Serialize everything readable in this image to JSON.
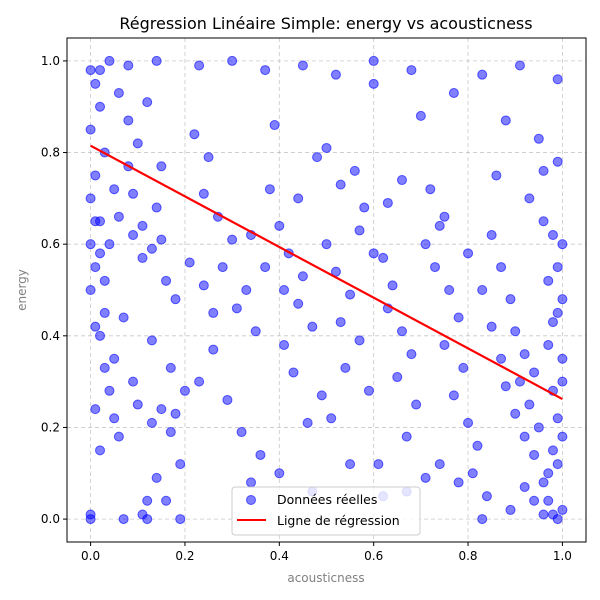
{
  "chart_data": {
    "type": "scatter",
    "title": "Régression Linéaire Simple: energy vs acousticness",
    "xlabel": "acousticness",
    "ylabel": "energy",
    "xlim": [
      -0.05,
      1.05
    ],
    "ylim": [
      -0.05,
      1.05
    ],
    "xticks": [
      "0.0",
      "0.2",
      "0.4",
      "0.6",
      "0.8",
      "1.0"
    ],
    "yticks": [
      "0.0",
      "0.2",
      "0.4",
      "0.6",
      "0.8",
      "1.0"
    ],
    "grid": true,
    "legend_position": "bottom-center",
    "series": [
      {
        "name": "Données réelles",
        "kind": "scatter",
        "color": "#0000ff",
        "points": [
          [
            0.0,
            0.98
          ],
          [
            0.01,
            0.95
          ],
          [
            0.02,
            0.9
          ],
          [
            0.0,
            0.85
          ],
          [
            0.03,
            0.8
          ],
          [
            0.01,
            0.75
          ],
          [
            0.0,
            0.7
          ],
          [
            0.02,
            0.65
          ],
          [
            0.04,
            0.6
          ],
          [
            0.01,
            0.55
          ],
          [
            0.0,
            0.5
          ],
          [
            0.03,
            0.45
          ],
          [
            0.02,
            0.4
          ],
          [
            0.05,
            0.35
          ],
          [
            0.0,
            0.01
          ],
          [
            0.0,
            0.0
          ],
          [
            0.01,
            0.24
          ],
          [
            0.02,
            0.15
          ],
          [
            0.07,
            0.0
          ],
          [
            0.11,
            0.01
          ],
          [
            0.12,
            0.0
          ],
          [
            0.19,
            0.0
          ],
          [
            0.06,
            0.93
          ],
          [
            0.08,
            0.87
          ],
          [
            0.1,
            0.82
          ],
          [
            0.12,
            0.91
          ],
          [
            0.15,
            0.77
          ],
          [
            0.14,
            0.68
          ],
          [
            0.09,
            0.62
          ],
          [
            0.11,
            0.57
          ],
          [
            0.16,
            0.52
          ],
          [
            0.18,
            0.48
          ],
          [
            0.07,
            0.44
          ],
          [
            0.13,
            0.39
          ],
          [
            0.17,
            0.33
          ],
          [
            0.2,
            0.28
          ],
          [
            0.22,
            0.84
          ],
          [
            0.25,
            0.79
          ],
          [
            0.24,
            0.71
          ],
          [
            0.27,
            0.66
          ],
          [
            0.3,
            0.61
          ],
          [
            0.28,
            0.55
          ],
          [
            0.33,
            0.5
          ],
          [
            0.31,
            0.46
          ],
          [
            0.35,
            0.41
          ],
          [
            0.26,
            0.37
          ],
          [
            0.23,
            0.3
          ],
          [
            0.29,
            0.26
          ],
          [
            0.32,
            0.19
          ],
          [
            0.36,
            0.14
          ],
          [
            0.38,
            0.72
          ],
          [
            0.4,
            0.64
          ],
          [
            0.42,
            0.58
          ],
          [
            0.45,
            0.53
          ],
          [
            0.44,
            0.47
          ],
          [
            0.47,
            0.42
          ],
          [
            0.41,
            0.38
          ],
          [
            0.43,
            0.32
          ],
          [
            0.49,
            0.27
          ],
          [
            0.46,
            0.21
          ],
          [
            0.39,
            0.86
          ],
          [
            0.48,
            0.79
          ],
          [
            0.5,
            0.6
          ],
          [
            0.52,
            0.54
          ],
          [
            0.55,
            0.49
          ],
          [
            0.53,
            0.43
          ],
          [
            0.57,
            0.39
          ],
          [
            0.54,
            0.33
          ],
          [
            0.59,
            0.28
          ],
          [
            0.51,
            0.22
          ],
          [
            0.56,
            0.76
          ],
          [
            0.58,
            0.68
          ],
          [
            0.6,
            0.95
          ],
          [
            0.62,
            0.57
          ],
          [
            0.64,
            0.51
          ],
          [
            0.63,
            0.46
          ],
          [
            0.66,
            0.41
          ],
          [
            0.68,
            0.36
          ],
          [
            0.65,
            0.31
          ],
          [
            0.69,
            0.25
          ],
          [
            0.67,
            0.18
          ],
          [
            0.61,
            0.12
          ],
          [
            0.7,
            0.88
          ],
          [
            0.72,
            0.72
          ],
          [
            0.74,
            0.64
          ],
          [
            0.73,
            0.55
          ],
          [
            0.76,
            0.5
          ],
          [
            0.78,
            0.44
          ],
          [
            0.75,
            0.38
          ],
          [
            0.79,
            0.33
          ],
          [
            0.77,
            0.27
          ],
          [
            0.8,
            0.21
          ],
          [
            0.82,
            0.16
          ],
          [
            0.81,
            0.1
          ],
          [
            0.84,
            0.05
          ],
          [
            0.86,
            0.75
          ],
          [
            0.88,
            0.87
          ],
          [
            0.85,
            0.62
          ],
          [
            0.87,
            0.55
          ],
          [
            0.89,
            0.48
          ],
          [
            0.9,
            0.41
          ],
          [
            0.92,
            0.36
          ],
          [
            0.91,
            0.3
          ],
          [
            0.93,
            0.25
          ],
          [
            0.95,
            0.2
          ],
          [
            0.94,
            0.14
          ],
          [
            0.96,
            0.08
          ],
          [
            0.97,
            0.04
          ],
          [
            0.98,
            0.01
          ],
          [
            0.99,
            0.0
          ],
          [
            1.0,
            0.02
          ],
          [
            0.99,
            0.12
          ],
          [
            1.0,
            0.18
          ],
          [
            0.98,
            0.28
          ],
          [
            1.0,
            0.35
          ],
          [
            0.99,
            0.45
          ],
          [
            0.97,
            0.52
          ],
          [
            1.0,
            0.6
          ],
          [
            0.96,
            0.65
          ],
          [
            0.95,
            0.83
          ],
          [
            0.99,
            0.96
          ],
          [
            0.91,
            0.99
          ],
          [
            0.83,
            0.97
          ],
          [
            0.77,
            0.93
          ],
          [
            0.68,
            0.98
          ],
          [
            0.6,
            1.0
          ],
          [
            0.52,
            0.97
          ],
          [
            0.45,
            0.99
          ],
          [
            0.37,
            0.98
          ],
          [
            0.3,
            1.0
          ],
          [
            0.23,
            0.99
          ],
          [
            0.14,
            1.0
          ],
          [
            0.08,
            0.99
          ],
          [
            0.04,
            1.0
          ],
          [
            0.02,
            0.98
          ],
          [
            0.03,
            0.33
          ],
          [
            0.04,
            0.28
          ],
          [
            0.05,
            0.22
          ],
          [
            0.06,
            0.18
          ],
          [
            0.09,
            0.3
          ],
          [
            0.1,
            0.25
          ],
          [
            0.13,
            0.21
          ],
          [
            0.15,
            0.24
          ],
          [
            0.17,
            0.19
          ],
          [
            0.18,
            0.23
          ],
          [
            0.19,
            0.12
          ],
          [
            0.14,
            0.09
          ],
          [
            0.12,
            0.04
          ],
          [
            0.16,
            0.04
          ],
          [
            0.34,
            0.08
          ],
          [
            0.4,
            0.1
          ],
          [
            0.47,
            0.06
          ],
          [
            0.55,
            0.12
          ],
          [
            0.62,
            0.05
          ],
          [
            0.67,
            0.06
          ],
          [
            0.71,
            0.09
          ],
          [
            0.74,
            0.12
          ],
          [
            0.78,
            0.08
          ],
          [
            0.83,
            0.0
          ],
          [
            0.89,
            0.02
          ],
          [
            0.92,
            0.07
          ],
          [
            0.94,
            0.04
          ],
          [
            0.96,
            0.01
          ],
          [
            0.97,
            0.1
          ],
          [
            0.98,
            0.15
          ],
          [
            0.99,
            0.22
          ],
          [
            1.0,
            0.3
          ],
          [
            0.97,
            0.38
          ],
          [
            0.98,
            0.43
          ],
          [
            1.0,
            0.48
          ],
          [
            0.99,
            0.55
          ],
          [
            0.98,
            0.62
          ],
          [
            0.93,
            0.7
          ],
          [
            0.96,
            0.76
          ],
          [
            0.99,
            0.78
          ],
          [
            0.01,
            0.65
          ],
          [
            0.0,
            0.6
          ],
          [
            0.02,
            0.58
          ],
          [
            0.01,
            0.42
          ],
          [
            0.03,
            0.52
          ],
          [
            0.05,
            0.72
          ],
          [
            0.06,
            0.66
          ],
          [
            0.08,
            0.77
          ],
          [
            0.09,
            0.71
          ],
          [
            0.11,
            0.64
          ],
          [
            0.13,
            0.59
          ],
          [
            0.15,
            0.61
          ],
          [
            0.21,
            0.56
          ],
          [
            0.24,
            0.51
          ],
          [
            0.26,
            0.45
          ],
          [
            0.34,
            0.62
          ],
          [
            0.37,
            0.55
          ],
          [
            0.41,
            0.5
          ],
          [
            0.44,
            0.7
          ],
          [
            0.5,
            0.81
          ],
          [
            0.53,
            0.73
          ],
          [
            0.57,
            0.63
          ],
          [
            0.6,
            0.58
          ],
          [
            0.63,
            0.69
          ],
          [
            0.66,
            0.74
          ],
          [
            0.71,
            0.6
          ],
          [
            0.75,
            0.66
          ],
          [
            0.8,
            0.58
          ],
          [
            0.83,
            0.5
          ],
          [
            0.85,
            0.42
          ],
          [
            0.87,
            0.35
          ],
          [
            0.88,
            0.29
          ],
          [
            0.9,
            0.23
          ],
          [
            0.92,
            0.18
          ],
          [
            0.94,
            0.32
          ]
        ]
      },
      {
        "name": "Ligne de régression",
        "kind": "line",
        "color": "#ff0000",
        "x": [
          0.0,
          1.0
        ],
        "y": [
          0.815,
          0.262
        ]
      }
    ]
  }
}
